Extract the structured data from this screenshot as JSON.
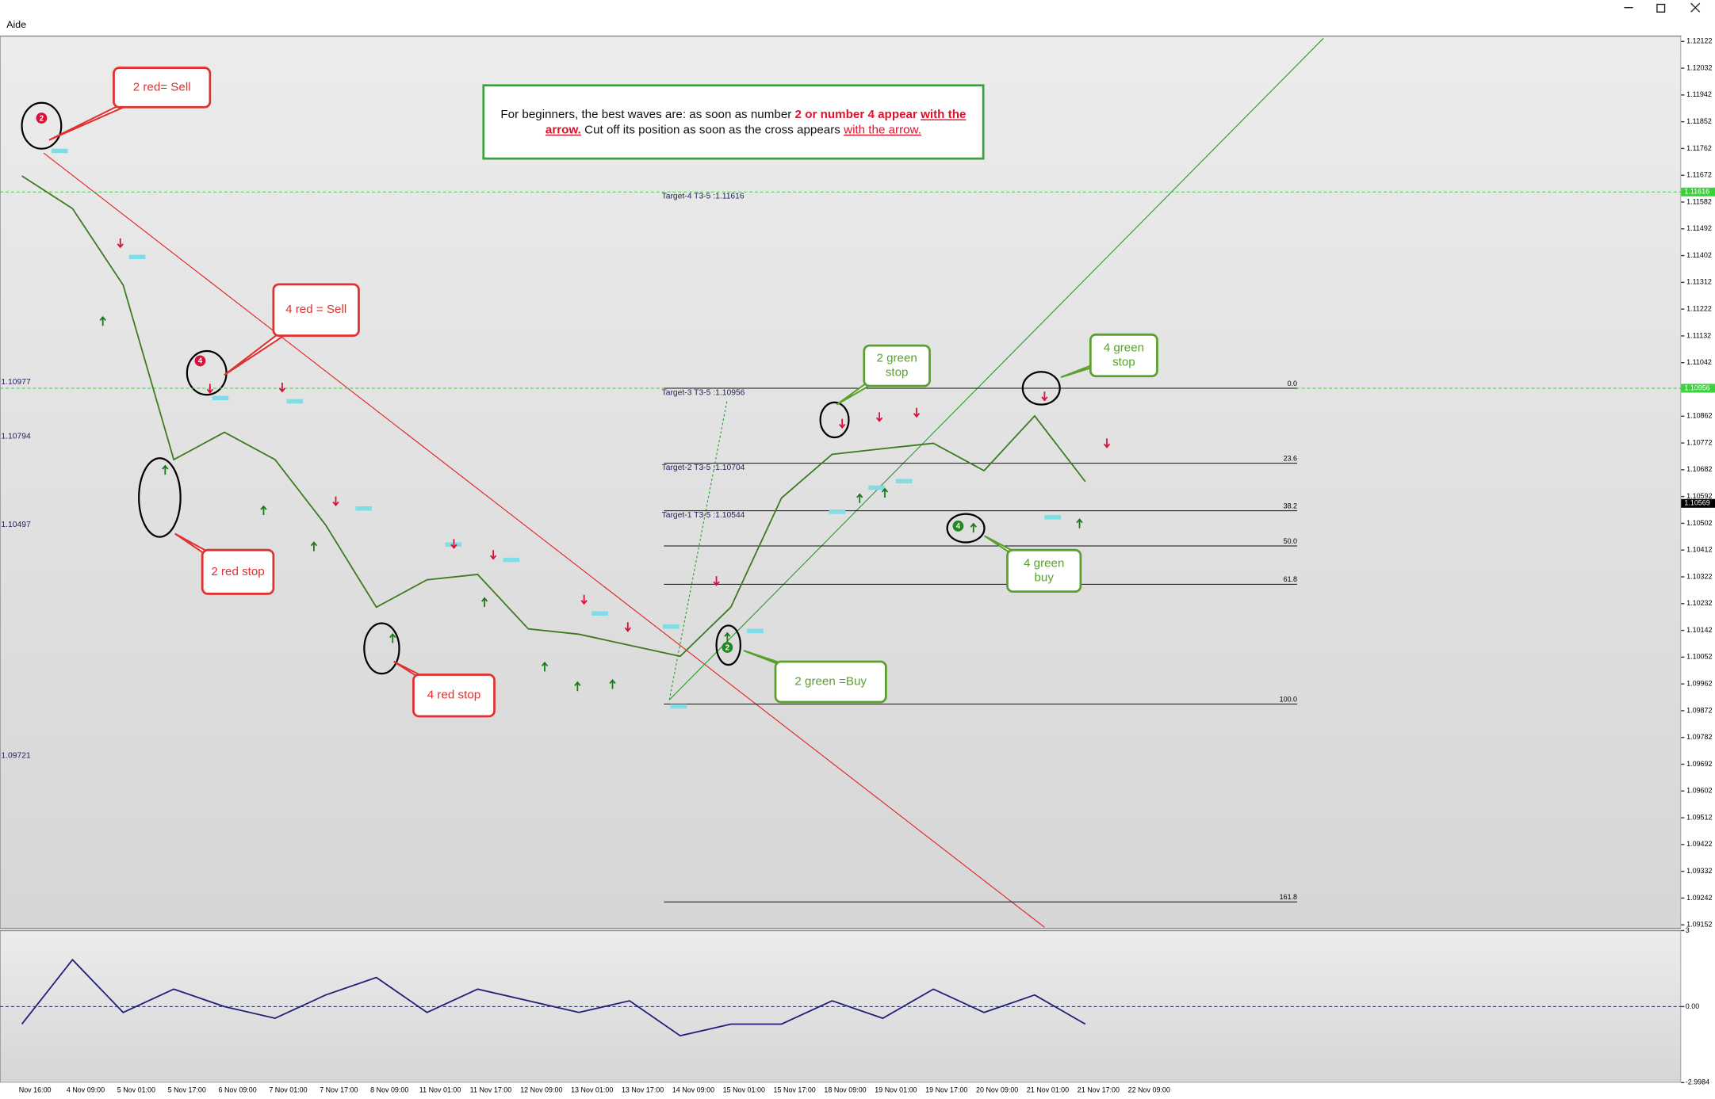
{
  "window": {
    "menu": "Aide"
  },
  "chart_data": [
    {
      "type": "line",
      "categories": [
        "Nov 16:00",
        "4 Nov 09:00",
        "5 Nov 01:00",
        "5 Nov 17:00",
        "6 Nov 09:00",
        "7 Nov 01:00",
        "7 Nov 17:00",
        "8 Nov 09:00",
        "11 Nov 01:00",
        "11 Nov 17:00",
        "12 Nov 09:00",
        "13 Nov 01:00",
        "13 Nov 17:00",
        "14 Nov 09:00",
        "15 Nov 01:00",
        "15 Nov 17:00",
        "18 Nov 09:00",
        "19 Nov 01:00",
        "19 Nov 17:00",
        "20 Nov 09:00",
        "21 Nov 01:00",
        "21 Nov 17:00",
        "22 Nov 09:00"
      ],
      "values": [
        1.1167,
        1.1156,
        1.11303,
        1.10716,
        1.10808,
        1.10716,
        1.10496,
        1.1022,
        1.10312,
        1.1033,
        1.10147,
        1.10129,
        1.10092,
        1.10055,
        1.1022,
        1.10587,
        1.10734,
        1.10753,
        1.10771,
        1.10679,
        1.10863,
        1.10642,
        null
      ],
      "color": "#3d7a1f",
      "ylim": [
        1.0914,
        1.1214
      ],
      "yticks": [
        1.12122,
        1.12032,
        1.11942,
        1.11852,
        1.11762,
        1.11672,
        1.11582,
        1.11492,
        1.11402,
        1.11312,
        1.11222,
        1.11132,
        1.11042,
        1.10952,
        1.10862,
        1.10772,
        1.10682,
        1.10592,
        1.10502,
        1.10412,
        1.10322,
        1.10232,
        1.10142,
        1.10052,
        1.09962,
        1.09872,
        1.09782,
        1.09692,
        1.09602,
        1.09512,
        1.09422,
        1.09332,
        1.09242,
        1.09152
      ],
      "level_labels": [
        1.10977,
        1.10794,
        1.10497,
        1.09721
      ],
      "targets": [
        {
          "label": "Target-4 T3-5 :1.11616",
          "value": 1.11616
        },
        {
          "label": "Target-3 T3-5 :1.10956",
          "value": 1.10956
        },
        {
          "label": "Target-2 T3-5 :1.10704",
          "value": 1.10704
        },
        {
          "label": "Target-1 T3-5 :1.10544",
          "value": 1.10544
        }
      ],
      "axis_markers": [
        {
          "value": 1.11616,
          "color": "#3ad13a",
          "dashed": true
        },
        {
          "value": 1.10956,
          "color": "#3ad13a",
          "dashed": true
        },
        {
          "value": 1.10569,
          "color": "#000000",
          "dashed": false
        }
      ],
      "fib_levels": [
        {
          "name": "0.0",
          "value": 1.10956
        },
        {
          "name": "23.6",
          "value": 1.10704
        },
        {
          "name": "38.2",
          "value": 1.10544
        },
        {
          "name": "50.0",
          "value": 1.10426
        },
        {
          "name": "61.8",
          "value": 1.10297
        },
        {
          "name": "100.0",
          "value": 1.09894
        },
        {
          "name": "161.8",
          "value": 1.09229
        }
      ]
    },
    {
      "type": "line",
      "values": [
        -0.69,
        1.85,
        -0.23,
        0.69,
        0,
        -0.46,
        0.46,
        1.15,
        -0.23,
        0.69,
        0.23,
        -0.23,
        0.23,
        -1.15,
        -0.69,
        -0.69,
        0.23,
        -0.46,
        0.69,
        -0.23,
        0.46,
        -0.69,
        null
      ],
      "color": "#1f1f7a",
      "ylim": [
        -2.9984,
        3
      ],
      "yticks": [
        3,
        {
          "value": 0,
          "label": "0.00"
        },
        -2.9984
      ]
    }
  ],
  "info": [
    {
      "text": "For beginners, the best waves are: as soon as number ",
      "style": "plain"
    },
    {
      "text": "2 or number 4 appear ",
      "style": "bold"
    },
    {
      "text": "with the arrow.",
      "style": "bold-underline"
    },
    {
      "text": " Cut off its position as soon as the cross appears ",
      "style": "plain"
    },
    {
      "text": "with the arrow.",
      "style": "underline"
    }
  ],
  "callouts": [
    {
      "lines": [
        "2 red= Sell"
      ],
      "color": "#e03030"
    },
    {
      "lines": [
        "4 red = Sell"
      ],
      "color": "#e03030"
    },
    {
      "lines": [
        "2 red stop"
      ],
      "color": "#e03030"
    },
    {
      "lines": [
        "4 red stop"
      ],
      "color": "#e03030"
    },
    {
      "lines": [
        "2 green",
        "stop"
      ],
      "color": "#5aa02c"
    },
    {
      "lines": [
        "4 green",
        "stop"
      ],
      "color": "#5aa02c"
    },
    {
      "lines": [
        "4 green",
        "buy"
      ],
      "color": "#5aa02c"
    },
    {
      "lines": [
        "2 green =Buy"
      ],
      "color": "#5aa02c"
    }
  ],
  "wave_markers": [
    {
      "text": "2",
      "color": "#d8103a"
    },
    {
      "text": "4",
      "color": "#d8103a"
    },
    {
      "text": "2",
      "color": "#1f8a1f"
    },
    {
      "text": "4",
      "color": "#1f8a1f"
    }
  ]
}
